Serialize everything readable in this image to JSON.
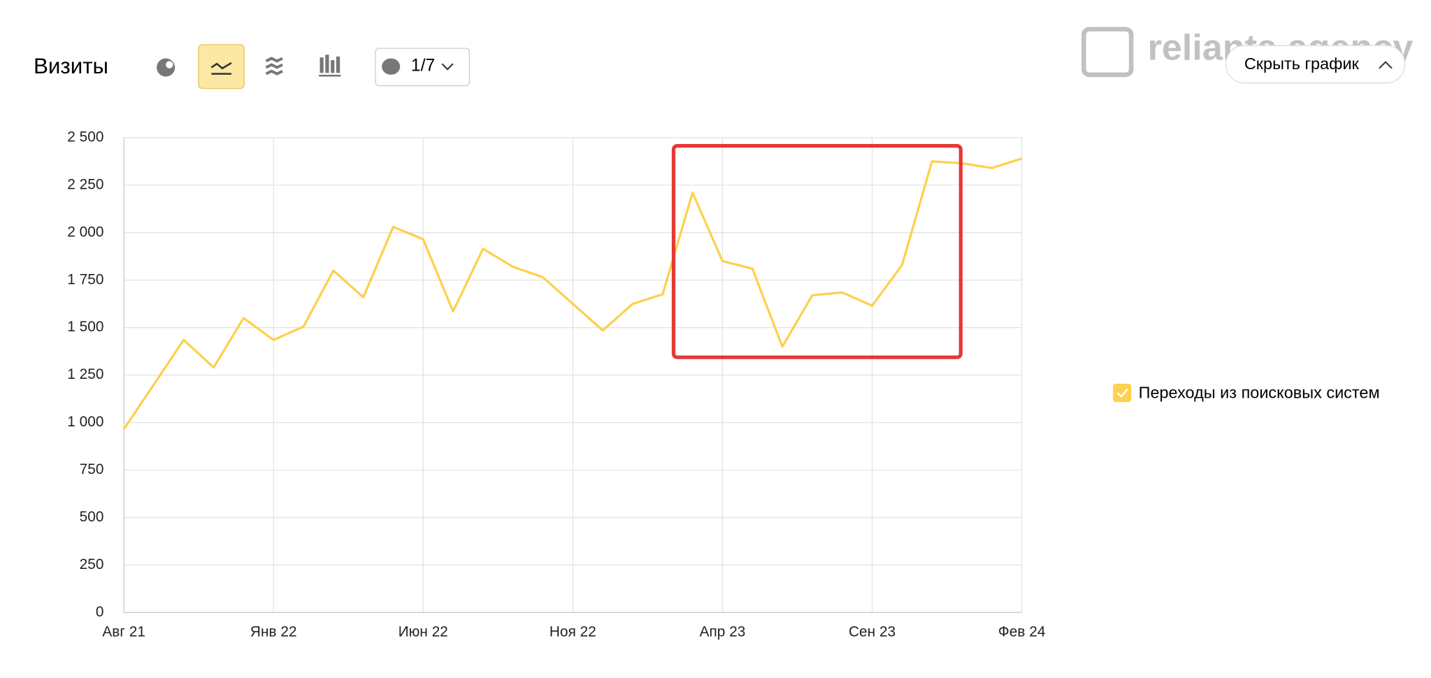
{
  "header": {
    "title": "Визиты",
    "annotation_counter": "1/7",
    "hide_button": "Скрыть график",
    "watermark": "relianta.agency"
  },
  "chart_data": {
    "type": "line",
    "categories": [
      "Авг 21",
      null,
      null,
      null,
      null,
      "Янв 22",
      null,
      null,
      null,
      null,
      "Июн 22",
      null,
      null,
      null,
      null,
      "Ноя 22",
      null,
      null,
      null,
      null,
      "Апр 23",
      null,
      null,
      null,
      null,
      "Сен 23",
      null,
      null,
      null,
      null,
      "Фев 24"
    ],
    "series": [
      {
        "name": "Переходы из поисковых систем",
        "color": "#fdd04e",
        "values": [
          965,
          1200,
          1435,
          1290,
          1550,
          1435,
          1505,
          1800,
          1660,
          2030,
          1965,
          1585,
          1915,
          1820,
          1765,
          1625,
          1485,
          1625,
          1675,
          2210,
          1850,
          1810,
          1400,
          1670,
          1685,
          1615,
          1830,
          2375,
          2365,
          2340,
          2390
        ]
      }
    ],
    "ylim": [
      0,
      2500
    ],
    "yticks": [
      0,
      250,
      500,
      750,
      {
        "value": 1000,
        "label": "1 000"
      },
      {
        "value": 1250,
        "label": "1 250"
      },
      {
        "value": 1500,
        "label": "1 500"
      },
      {
        "value": 1750,
        "label": "1 750"
      },
      {
        "value": 2000,
        "label": "2 000"
      },
      {
        "value": 2250,
        "label": "2 250"
      },
      {
        "value": 2500,
        "label": "2 500"
      }
    ],
    "grid": true
  }
}
